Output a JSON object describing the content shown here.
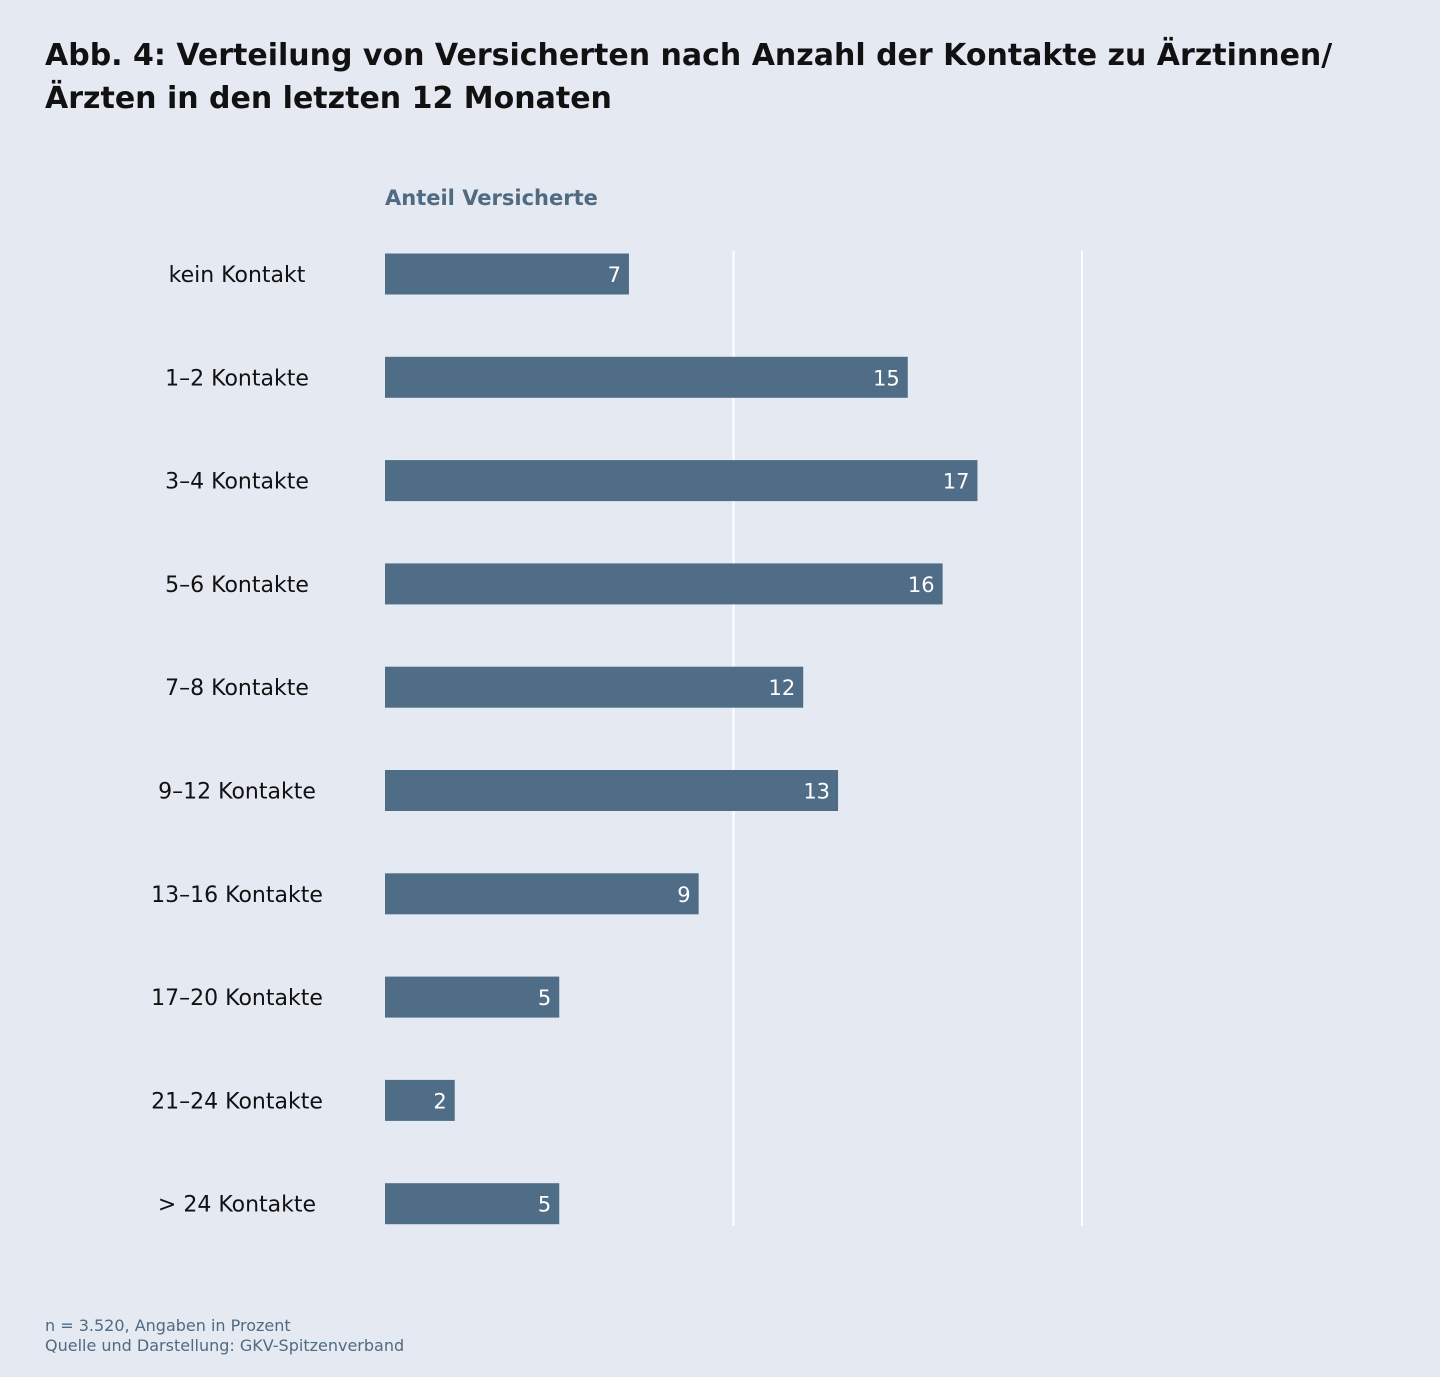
{
  "title": "Abb. 4: Verteilung von Versicherten nach Anzahl der Kontakte zu Ärztinnen/Ärzten in den letzten 12 Monaten",
  "chart_data": {
    "type": "bar",
    "orientation": "horizontal",
    "title": "Abb. 4: Verteilung von Versicherten nach Anzahl der Kontakte zu Ärztinnen/Ärzten in den letzten 12 Monaten",
    "value_axis_label": "Anteil Versicherte",
    "categories": [
      "kein Kontakt",
      "1–2 Kontakte",
      "3–4 Kontakte",
      "5–6 Kontakte",
      "7–8 Kontakte",
      "9–12 Kontakte",
      "13–16 Kontakte",
      "17–20 Kontakte",
      "21–24 Kontakte",
      "> 24 Kontakte"
    ],
    "values": [
      7,
      15,
      17,
      16,
      12,
      13,
      9,
      5,
      2,
      5
    ],
    "xlim": [
      0,
      20
    ],
    "gridlines": [
      10,
      20
    ],
    "grid": true,
    "data_labels": "inside-end",
    "bar_color": "#506d87",
    "label_color": "#ffffff",
    "gridline_color": "#ffffff"
  },
  "footer": {
    "note": "n = 3.520, Angaben in Prozent",
    "source": "Quelle und Darstellung: GKV-Spitzenverband"
  }
}
